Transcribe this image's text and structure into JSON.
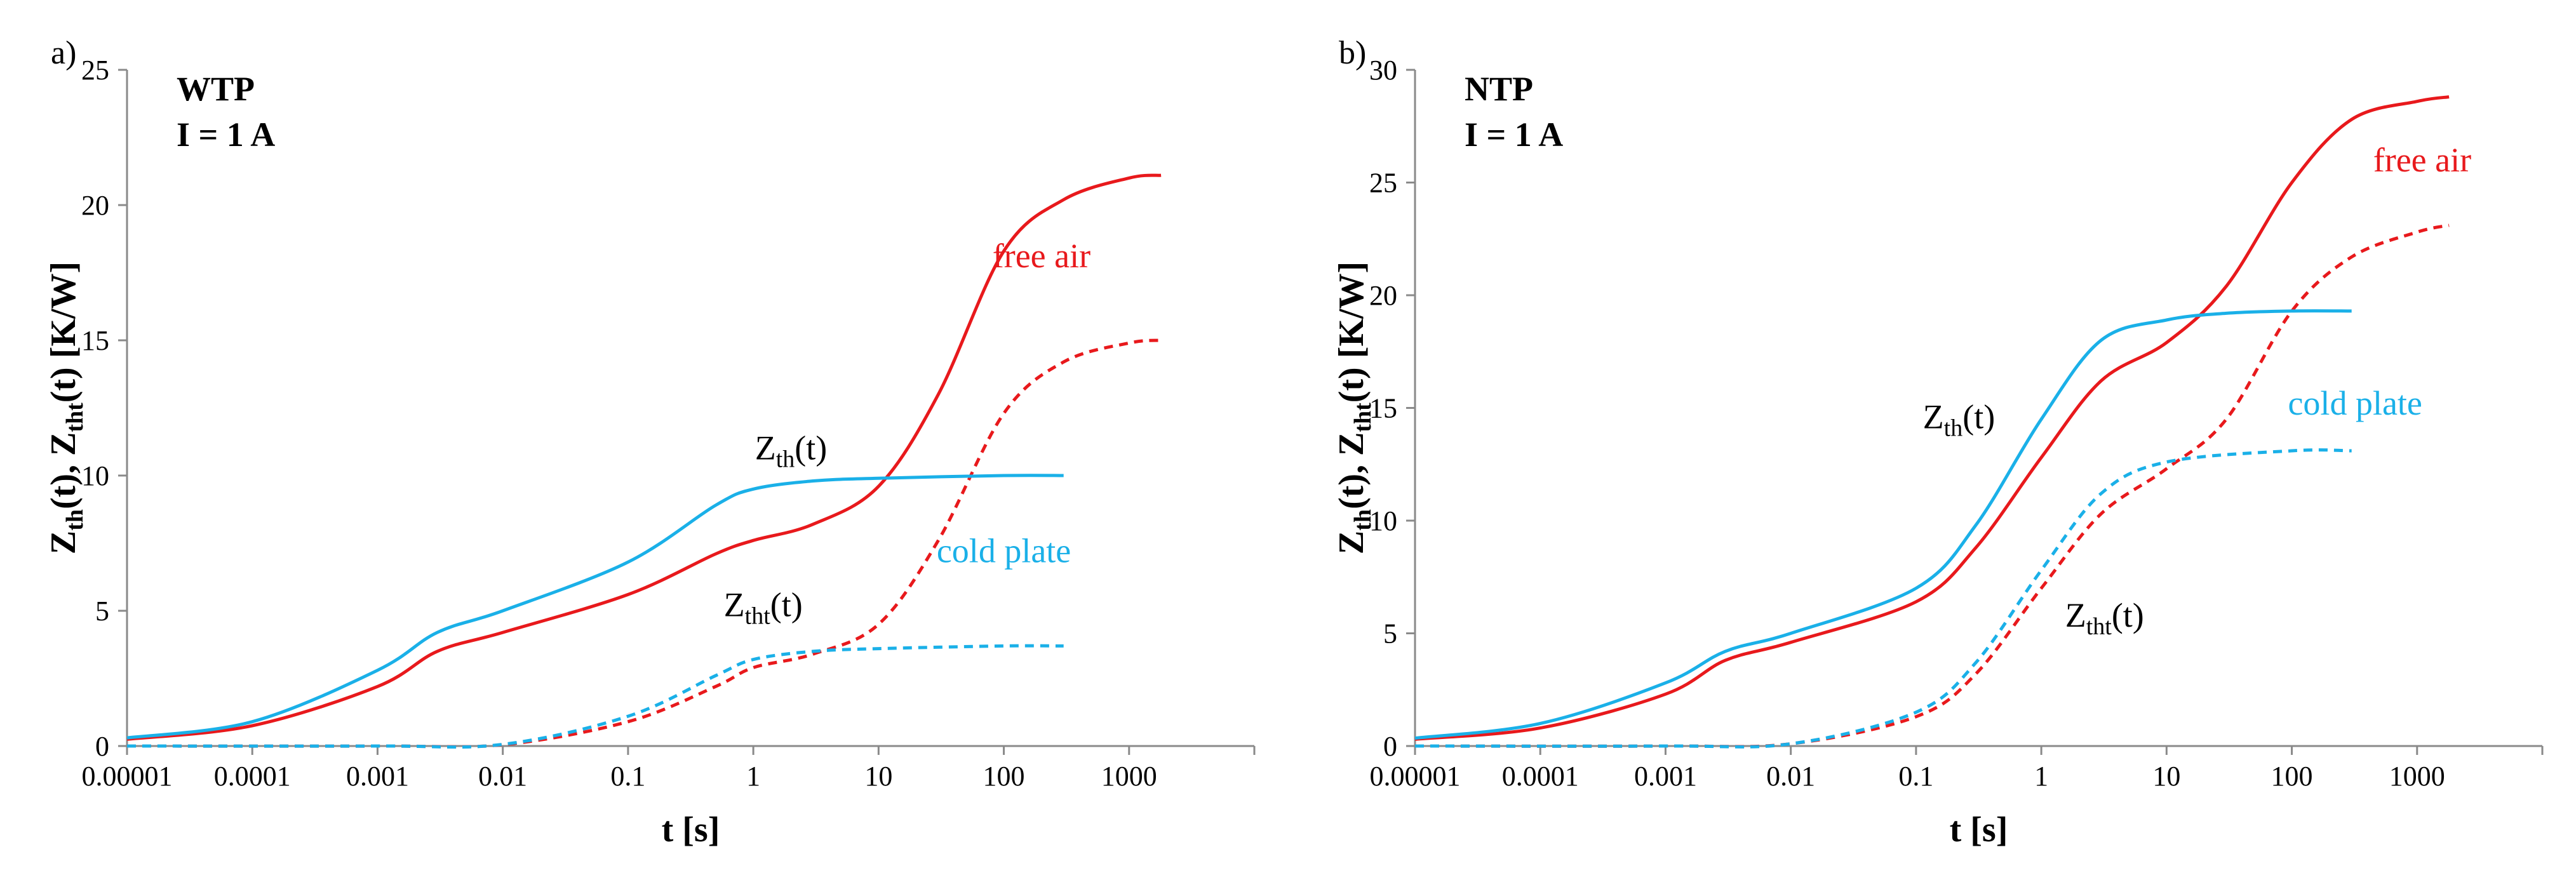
{
  "chart_data": [
    {
      "type": "line",
      "panel_label": "a)",
      "title": "WTP",
      "subtitle": "I = 1 A",
      "x_scale": "log",
      "xlim": [
        1e-05,
        10000
      ],
      "ylim": [
        0,
        25
      ],
      "x_ticks": [
        "0.00001",
        "0.0001",
        "0.001",
        "0.01",
        "0.1",
        "1",
        "10",
        "100",
        "1000"
      ],
      "y_ticks": [
        "0",
        "5",
        "10",
        "15",
        "20",
        "25"
      ],
      "xlabel": "t [s]",
      "ylabel": {
        "main": "Z",
        "sub1": "th",
        "mid": "(t), Z",
        "sub2": "tht",
        "end": "(t) [K/W]"
      },
      "grid": false,
      "series": [
        {
          "color": "#e8191c",
          "dash": false,
          "x": [
            1e-05,
            0.0001,
            0.001,
            0.003,
            0.01,
            0.1,
            0.5,
            1,
            3,
            10,
            30,
            100,
            300,
            1000,
            1800
          ],
          "y": [
            0.25,
            0.75,
            2.2,
            3.5,
            4.2,
            5.6,
            7.1,
            7.6,
            8.2,
            9.6,
            13,
            18.3,
            20.2,
            21,
            21.1
          ]
        },
        {
          "color": "#e8191c",
          "dash": true,
          "x": [
            1e-05,
            0.001,
            0.01,
            0.1,
            0.5,
            1,
            3,
            10,
            30,
            100,
            300,
            1000,
            1800
          ],
          "y": [
            0,
            0,
            0.05,
            0.9,
            2.2,
            2.9,
            3.4,
            4.5,
            7.6,
            12.3,
            14.2,
            14.9,
            15
          ]
        },
        {
          "color": "#1ab0e8",
          "dash": false,
          "x": [
            1e-05,
            0.0001,
            0.001,
            0.003,
            0.01,
            0.1,
            0.5,
            1,
            3,
            10,
            100,
            300
          ],
          "y": [
            0.3,
            0.9,
            2.8,
            4.2,
            5,
            6.8,
            8.9,
            9.5,
            9.8,
            9.9,
            10,
            10
          ]
        },
        {
          "color": "#1ab0e8",
          "dash": true,
          "x": [
            1e-05,
            0.001,
            0.01,
            0.1,
            0.5,
            1,
            3,
            10,
            100,
            300
          ],
          "y": [
            0,
            0,
            0.06,
            1.1,
            2.6,
            3.2,
            3.5,
            3.6,
            3.7,
            3.7
          ]
        }
      ],
      "annotations": [
        {
          "text": "free air",
          "color": "#e8191c",
          "x": 200,
          "y": 17.7,
          "anchor": "middle"
        },
        {
          "text": "cold plate",
          "color": "#1ab0e8",
          "x": 100,
          "y": 6.8,
          "anchor": "middle"
        },
        {
          "main": "Z",
          "sub": "th",
          "tail": "(t)",
          "color": "#000000",
          "x": 2,
          "y": 10.6,
          "anchor": "middle"
        },
        {
          "main": "Z",
          "sub": "tht",
          "tail": "(t)",
          "color": "#000000",
          "x": 1.2,
          "y": 4.8,
          "anchor": "middle"
        }
      ]
    },
    {
      "type": "line",
      "panel_label": "b)",
      "title": "NTP",
      "subtitle": "I = 1 A",
      "x_scale": "log",
      "xlim": [
        1e-05,
        10000
      ],
      "ylim": [
        0,
        30
      ],
      "x_ticks": [
        "0.00001",
        "0.0001",
        "0.001",
        "0.01",
        "0.1",
        "1",
        "10",
        "100",
        "1000"
      ],
      "y_ticks": [
        "0",
        "5",
        "10",
        "15",
        "20",
        "25",
        "30"
      ],
      "xlabel": "t [s]",
      "ylabel": {
        "main": "Z",
        "sub1": "th",
        "mid": "(t), Z",
        "sub2": "tht",
        "end": "(t) [K/W]"
      },
      "grid": false,
      "series": [
        {
          "color": "#e8191c",
          "dash": false,
          "x": [
            1e-05,
            0.0001,
            0.001,
            0.003,
            0.01,
            0.1,
            0.3,
            1,
            3,
            10,
            30,
            100,
            300,
            1000,
            1800
          ],
          "y": [
            0.3,
            0.8,
            2.3,
            3.8,
            4.6,
            6.4,
            8.8,
            12.8,
            16.2,
            17.9,
            20.4,
            25,
            27.8,
            28.6,
            28.8
          ]
        },
        {
          "color": "#e8191c",
          "dash": true,
          "x": [
            1e-05,
            0.001,
            0.01,
            0.1,
            0.3,
            1,
            3,
            10,
            30,
            100,
            300,
            1000,
            1800
          ],
          "y": [
            0,
            0,
            0.1,
            1.3,
            3.2,
            7,
            10.3,
            12.3,
            14.5,
            19.3,
            21.7,
            22.8,
            23.1
          ]
        },
        {
          "color": "#1ab0e8",
          "dash": false,
          "x": [
            1e-05,
            0.0001,
            0.001,
            0.003,
            0.01,
            0.1,
            0.3,
            1,
            3,
            10,
            30,
            100,
            300
          ],
          "y": [
            0.35,
            1,
            2.8,
            4.2,
            5,
            7,
            9.8,
            14.5,
            18,
            18.9,
            19.2,
            19.3,
            19.3
          ]
        },
        {
          "color": "#1ab0e8",
          "dash": true,
          "x": [
            1e-05,
            0.001,
            0.01,
            0.1,
            0.3,
            1,
            3,
            10,
            100,
            300
          ],
          "y": [
            0,
            0,
            0.1,
            1.5,
            3.7,
            7.8,
            11.2,
            12.6,
            13.1,
            13.1
          ]
        }
      ],
      "annotations": [
        {
          "text": "free air",
          "color": "#e8191c",
          "x": 1100,
          "y": 25.5,
          "anchor": "middle"
        },
        {
          "text": "cold plate",
          "color": "#1ab0e8",
          "x": 320,
          "y": 14.7,
          "anchor": "middle"
        },
        {
          "main": "Z",
          "sub": "th",
          "tail": "(t)",
          "color": "#000000",
          "x": 0.22,
          "y": 14.1,
          "anchor": "middle"
        },
        {
          "main": "Z",
          "sub": "tht",
          "tail": "(t)",
          "color": "#000000",
          "x": 3.2,
          "y": 5.3,
          "anchor": "middle"
        }
      ]
    }
  ]
}
